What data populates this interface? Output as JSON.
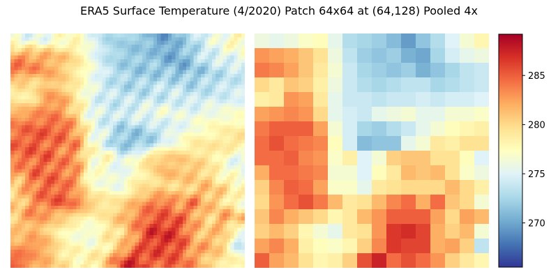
{
  "chart_data": {
    "type": "heatmap",
    "title": "ERA5 Surface Temperature (4/2020) Patch 64x64 at (64,128) Pooled 4x",
    "colormap": "RdYlBu_r",
    "colorbar": {
      "vmin": 265.5,
      "vmax": 289.2,
      "ticks": [
        270,
        275,
        280,
        285
      ]
    },
    "panels": [
      {
        "name": "full-resolution",
        "rows": 64,
        "cols": 64,
        "source": "upsampled-from-pooled-with-detail"
      },
      {
        "name": "pooled-4x",
        "rows": 16,
        "cols": 16
      }
    ],
    "pooled_values": [
      [
        276.0,
        275.5,
        276.0,
        277.0,
        277.5,
        275.5,
        273.0,
        272.5,
        272.0,
        271.0,
        269.5,
        271.5,
        273.0,
        275.0,
        276.5,
        278.0
      ],
      [
        283.0,
        282.5,
        282.0,
        281.0,
        279.5,
        276.0,
        273.5,
        272.0,
        271.5,
        272.0,
        270.5,
        270.0,
        272.5,
        274.5,
        275.5,
        276.0
      ],
      [
        284.0,
        283.5,
        282.5,
        281.0,
        279.0,
        276.5,
        274.0,
        272.5,
        272.0,
        271.5,
        272.0,
        270.5,
        271.5,
        272.5,
        273.5,
        274.0
      ],
      [
        280.0,
        279.0,
        281.0,
        280.5,
        278.5,
        276.0,
        274.0,
        273.0,
        272.5,
        273.0,
        273.5,
        273.5,
        272.5,
        273.0,
        273.5,
        274.0
      ],
      [
        278.5,
        279.0,
        283.0,
        282.5,
        279.0,
        275.5,
        274.0,
        274.0,
        273.5,
        274.0,
        274.0,
        274.5,
        274.0,
        274.5,
        274.5,
        275.0
      ],
      [
        282.5,
        283.0,
        283.5,
        283.0,
        280.0,
        275.5,
        274.5,
        274.0,
        275.5,
        276.0,
        276.5,
        275.5,
        275.5,
        276.5,
        276.5,
        277.0
      ],
      [
        284.0,
        285.0,
        285.0,
        285.0,
        282.5,
        276.5,
        274.5,
        272.5,
        272.0,
        273.0,
        274.0,
        275.5,
        276.5,
        277.5,
        278.0,
        278.5
      ],
      [
        284.5,
        285.5,
        284.5,
        284.0,
        283.5,
        277.5,
        274.5,
        271.0,
        271.5,
        271.5,
        275.5,
        276.5,
        279.0,
        278.5,
        279.5,
        279.5
      ],
      [
        284.5,
        284.5,
        285.0,
        283.5,
        283.0,
        277.0,
        278.5,
        275.0,
        276.5,
        280.5,
        281.0,
        281.0,
        279.5,
        279.5,
        277.5,
        275.0
      ],
      [
        282.0,
        284.5,
        284.5,
        284.0,
        283.5,
        276.5,
        276.5,
        275.0,
        277.5,
        279.0,
        281.5,
        281.0,
        281.5,
        279.5,
        277.0,
        276.0
      ],
      [
        280.5,
        283.5,
        285.0,
        284.5,
        282.5,
        277.0,
        277.0,
        275.5,
        279.0,
        279.5,
        280.0,
        280.0,
        280.0,
        281.5,
        280.0,
        278.5
      ],
      [
        280.0,
        283.0,
        284.5,
        285.5,
        284.0,
        281.5,
        279.0,
        279.5,
        281.5,
        283.5,
        284.5,
        282.0,
        284.5,
        281.0,
        280.0,
        276.5
      ],
      [
        281.0,
        283.5,
        282.0,
        281.0,
        280.0,
        278.0,
        279.0,
        281.5,
        283.0,
        285.0,
        285.0,
        285.0,
        282.5,
        280.0,
        282.5,
        281.5
      ],
      [
        280.5,
        281.5,
        280.5,
        278.0,
        276.5,
        275.5,
        279.0,
        279.5,
        283.0,
        286.5,
        287.0,
        286.0,
        282.0,
        280.5,
        281.5,
        276.5
      ],
      [
        282.5,
        283.5,
        282.0,
        278.5,
        277.5,
        277.0,
        278.0,
        280.5,
        283.5,
        286.5,
        286.0,
        286.0,
        282.0,
        282.5,
        280.5,
        273.5
      ],
      [
        285.0,
        282.5,
        281.5,
        279.5,
        278.0,
        278.5,
        280.5,
        285.5,
        287.5,
        284.5,
        285.5,
        284.5,
        283.0,
        280.5,
        279.0,
        278.0
      ]
    ]
  },
  "labels": {
    "title": "ERA5 Surface Temperature (4/2020) Patch 64x64 at (64,128) Pooled 4x",
    "tick_270": "270",
    "tick_275": "275",
    "tick_280": "280",
    "tick_285": "285"
  }
}
